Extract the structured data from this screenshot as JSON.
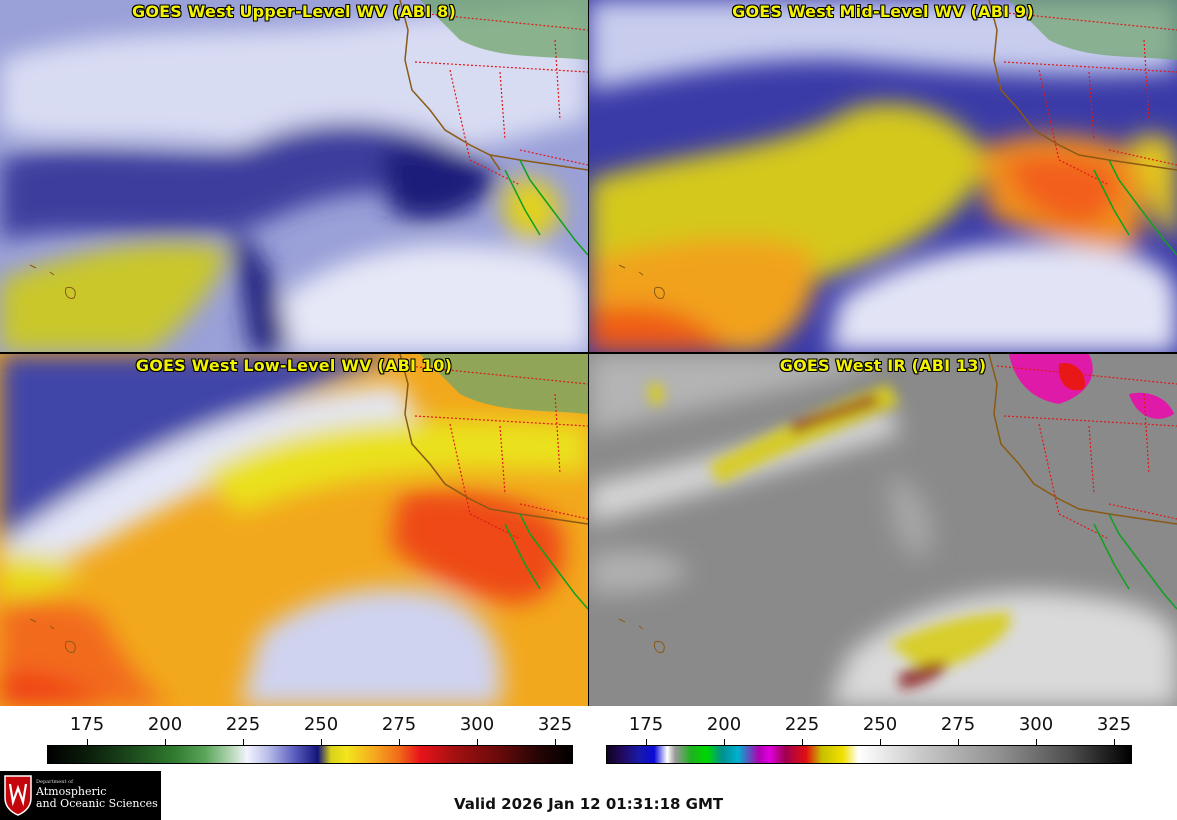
{
  "panels": [
    {
      "title": "GOES West Upper-Level WV (ABI 8)"
    },
    {
      "title": "GOES West Mid-Level WV (ABI 9)"
    },
    {
      "title": "GOES West Low-Level WV (ABI 10)"
    },
    {
      "title": "GOES West IR (ABI 13)"
    }
  ],
  "scales": [
    {
      "name": "water-vapor",
      "ticks": [
        "175",
        "200",
        "225",
        "250",
        "275",
        "300",
        "325"
      ]
    },
    {
      "name": "infrared",
      "ticks": [
        "175",
        "200",
        "225",
        "250",
        "275",
        "300",
        "325"
      ]
    }
  ],
  "logo": {
    "dept": "Department of",
    "line1": "Atmospheric",
    "line2": "and Oceanic Sciences"
  },
  "valid_time": "Valid 2026 Jan 12 01:31:18 GMT",
  "colors": {
    "title_text": "#f3f300",
    "state_borders": "#e01818",
    "coastline": "#8a5a14",
    "mexico_coast": "#10a020"
  }
}
